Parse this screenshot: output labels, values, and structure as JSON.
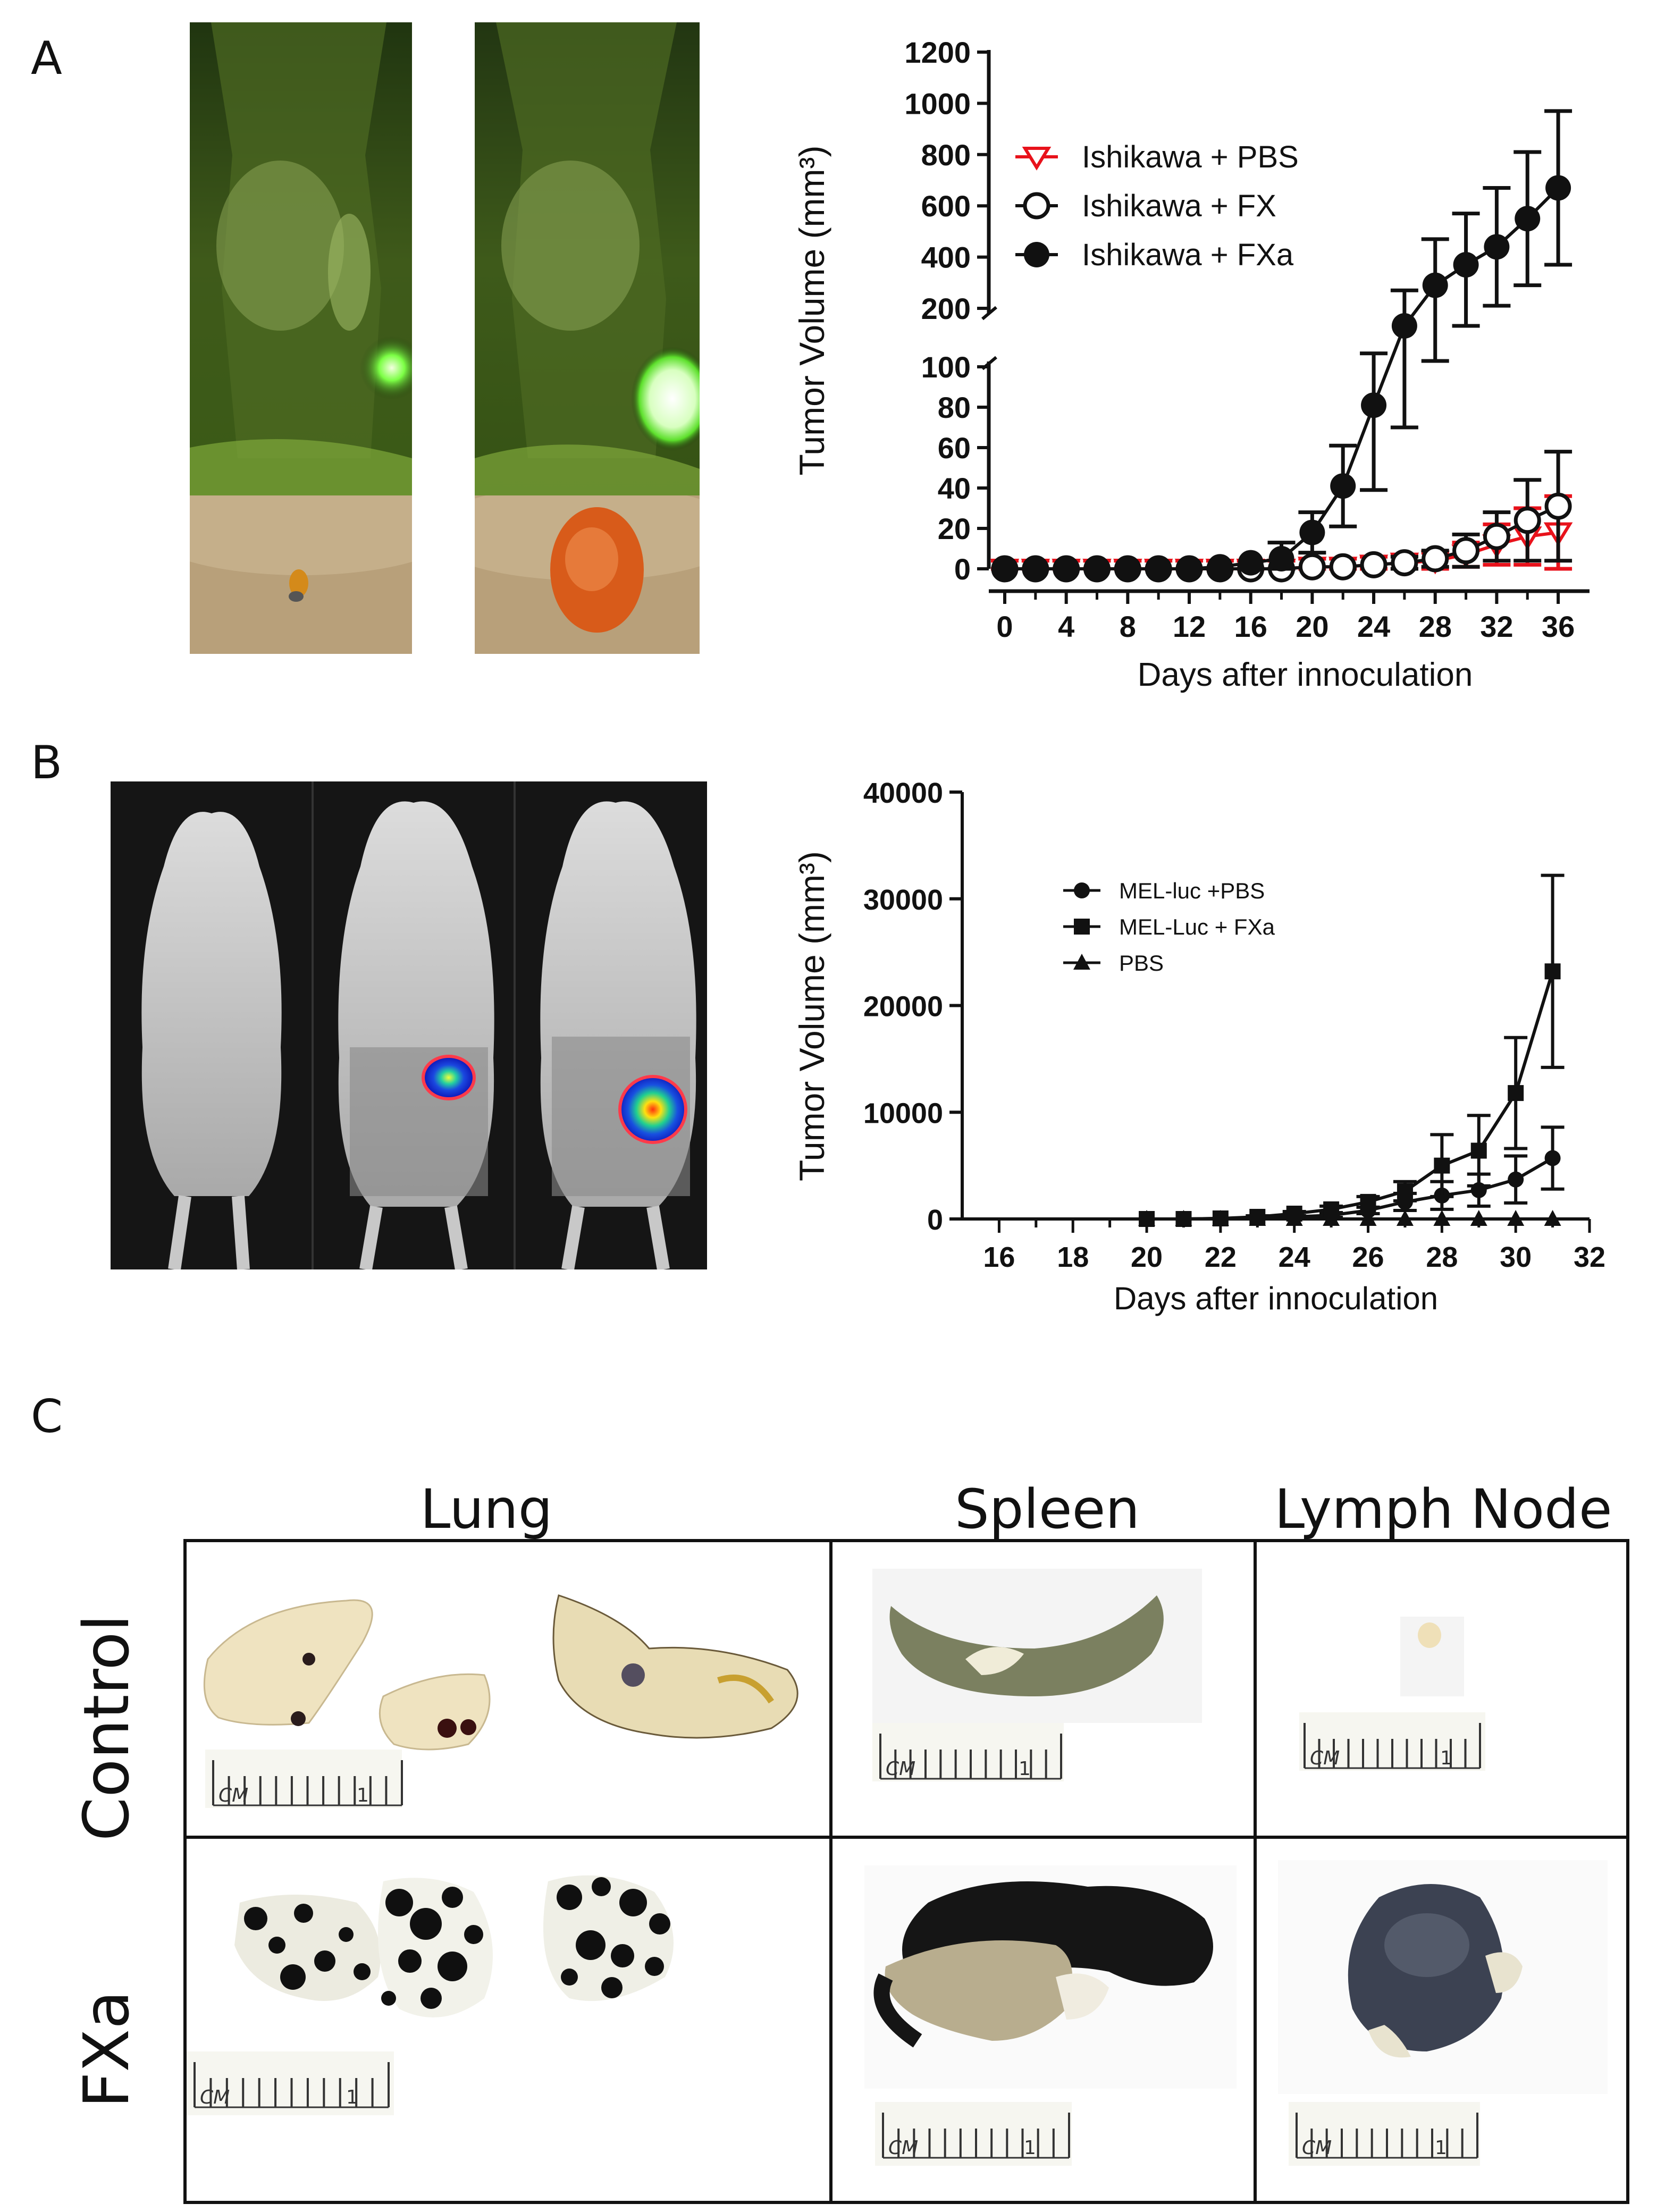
{
  "panels": {
    "a": {
      "letter": "A"
    },
    "b": {
      "letter": "B"
    },
    "c": {
      "letter": "C"
    }
  },
  "chart_a": {
    "type": "line",
    "ylabel": "Tumor Volume (mm³)",
    "xlabel": "Days after innoculation",
    "broken_y_axis": true,
    "ylim_lower": [
      0,
      100
    ],
    "ylim_upper": [
      200,
      1200
    ],
    "yticks_lower": [
      "0",
      "20",
      "40",
      "60",
      "80",
      "100"
    ],
    "yticks_upper": [
      "200",
      "400",
      "600",
      "800",
      "1000",
      "1200"
    ],
    "xticks": [
      "0",
      "4",
      "8",
      "12",
      "16",
      "20",
      "24",
      "28",
      "32",
      "36"
    ],
    "xlim": [
      0,
      37
    ],
    "legend_position": "upper-left",
    "series": [
      {
        "name": "Ishikawa + PBS",
        "marker": "open-triangle-down",
        "color": "#e8121b",
        "x": [
          0,
          2,
          4,
          6,
          8,
          10,
          12,
          14,
          16,
          18,
          20,
          22,
          24,
          26,
          28,
          30,
          32,
          34,
          36
        ],
        "y": [
          0,
          0,
          0,
          0,
          0,
          0,
          0,
          0,
          0,
          0,
          1,
          1,
          2,
          3,
          4,
          7,
          12,
          16,
          18
        ],
        "err": [
          4,
          4,
          4,
          4,
          4,
          4,
          4,
          4,
          4,
          4,
          4,
          4,
          4,
          4,
          4,
          6,
          10,
          14,
          18
        ]
      },
      {
        "name": "Ishikawa + FX",
        "marker": "open-circle",
        "color": "#111111",
        "x": [
          0,
          2,
          4,
          6,
          8,
          10,
          12,
          14,
          16,
          18,
          20,
          22,
          24,
          26,
          28,
          30,
          32,
          34,
          36
        ],
        "y": [
          0,
          0,
          0,
          0,
          0,
          0,
          0,
          0,
          0,
          0,
          1,
          1,
          2,
          3,
          5,
          9,
          16,
          24,
          31
        ],
        "err": [
          1,
          1,
          1,
          1,
          1,
          1,
          1,
          1,
          1,
          1,
          1,
          2,
          2,
          3,
          4,
          8,
          12,
          20,
          27
        ]
      },
      {
        "name": "Ishikawa + FXa",
        "marker": "filled-circle",
        "color": "#111111",
        "x": [
          0,
          2,
          4,
          6,
          8,
          10,
          12,
          14,
          16,
          18,
          20,
          22,
          24,
          26,
          28,
          30,
          32,
          34,
          36
        ],
        "y": [
          0,
          0,
          0,
          0,
          0,
          0,
          0,
          1,
          3,
          5,
          18,
          41,
          81,
          170,
          290,
          370,
          440,
          550,
          670
        ],
        "err": [
          1,
          1,
          1,
          1,
          1,
          1,
          1,
          1,
          2,
          8,
          10,
          20,
          42,
          100,
          180,
          200,
          230,
          260,
          300
        ]
      }
    ]
  },
  "chart_b": {
    "type": "line",
    "ylabel": "Tumor Volume (mm³)",
    "xlabel": "Days after innoculation",
    "ylim": [
      0,
      40000
    ],
    "yticks": [
      "0",
      "10000",
      "20000",
      "30000",
      "40000"
    ],
    "xticks": [
      "16",
      "18",
      "20",
      "22",
      "24",
      "26",
      "28",
      "30",
      "32"
    ],
    "xlim": [
      15,
      32
    ],
    "legend_position": "upper-left",
    "series": [
      {
        "name": "MEL-luc +PBS",
        "marker": "circle",
        "x": [
          20,
          21,
          22,
          23,
          24,
          25,
          26,
          27,
          28,
          29,
          30,
          31
        ],
        "y": [
          0,
          0,
          50,
          100,
          200,
          350,
          800,
          1600,
          2200,
          2700,
          3700,
          5700
        ],
        "err": [
          0,
          0,
          0,
          0,
          100,
          200,
          300,
          800,
          1300,
          1500,
          2200,
          2900
        ]
      },
      {
        "name": "MEL-Luc + FXa",
        "marker": "square",
        "x": [
          20,
          21,
          22,
          23,
          24,
          25,
          26,
          27,
          28,
          29,
          30,
          31
        ],
        "y": [
          0,
          0,
          50,
          200,
          500,
          900,
          1600,
          2600,
          5000,
          6400,
          11800,
          23200
        ],
        "err": [
          0,
          0,
          0,
          100,
          200,
          300,
          500,
          900,
          2900,
          3300,
          5200,
          9000
        ]
      },
      {
        "name": "PBS",
        "marker": "triangle",
        "x": [
          20,
          21,
          22,
          23,
          24,
          25,
          26,
          27,
          28,
          29,
          30,
          31
        ],
        "y": [
          0,
          0,
          0,
          0,
          0,
          0,
          0,
          0,
          0,
          0,
          0,
          0
        ],
        "err": [
          0,
          0,
          0,
          0,
          0,
          0,
          0,
          0,
          0,
          0,
          0,
          0
        ]
      }
    ]
  },
  "grid_c": {
    "columns": [
      "Lung",
      "Spleen",
      "Lymph Node"
    ],
    "rows": [
      "Control",
      "FXa"
    ],
    "ruler_label": "CM",
    "ruler_number": "1"
  }
}
